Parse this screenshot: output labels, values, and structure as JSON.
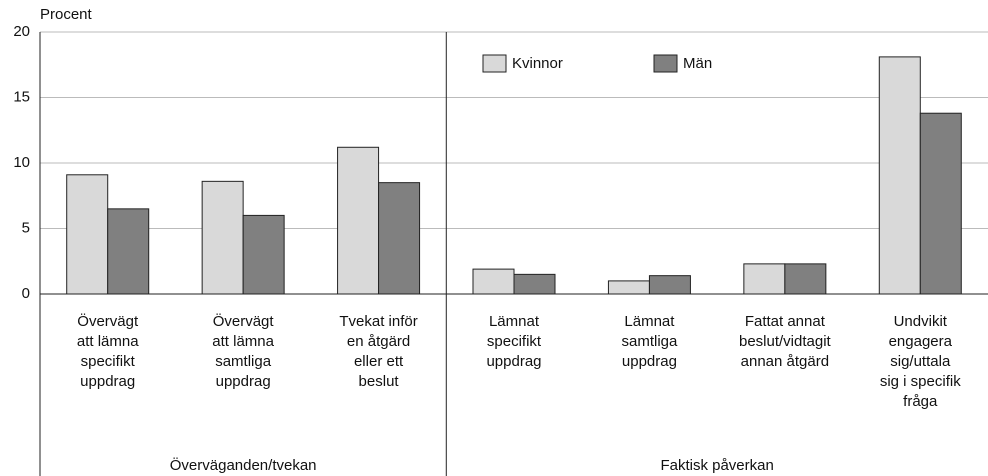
{
  "chart_data": {
    "type": "bar",
    "ylabel": "Procent",
    "categories": [
      [
        "Övervägt",
        "att lämna",
        "specifikt",
        "uppdrag"
      ],
      [
        "Övervägt",
        "att lämna",
        "samtliga",
        "uppdrag"
      ],
      [
        "Tvekat inför",
        "en åtgärd",
        "eller ett",
        "beslut"
      ],
      [
        "Lämnat",
        "specifikt",
        "uppdrag"
      ],
      [
        "Lämnat",
        "samtliga",
        "uppdrag"
      ],
      [
        "Fattat annat",
        "beslut/vidtagit",
        "annan åtgärd"
      ],
      [
        "Undvikit",
        "engagera",
        "sig/uttala",
        "sig i specifik",
        "fråga"
      ]
    ],
    "groups": [
      {
        "label": "Överväganden/tvekan",
        "count": 3
      },
      {
        "label": "Faktisk påverkan",
        "count": 4
      }
    ],
    "series": [
      {
        "name": "Kvinnor",
        "color": "#d9d9d9",
        "values": [
          9.1,
          8.6,
          11.2,
          1.9,
          1.0,
          2.3,
          18.1
        ]
      },
      {
        "name": "Män",
        "color": "#808080",
        "values": [
          6.5,
          6.0,
          8.5,
          1.5,
          1.4,
          2.3,
          13.8
        ]
      }
    ],
    "ylim": [
      0,
      20
    ],
    "yticks": [
      0,
      5,
      10,
      15,
      20
    ],
    "grid": true,
    "legend": "top"
  }
}
